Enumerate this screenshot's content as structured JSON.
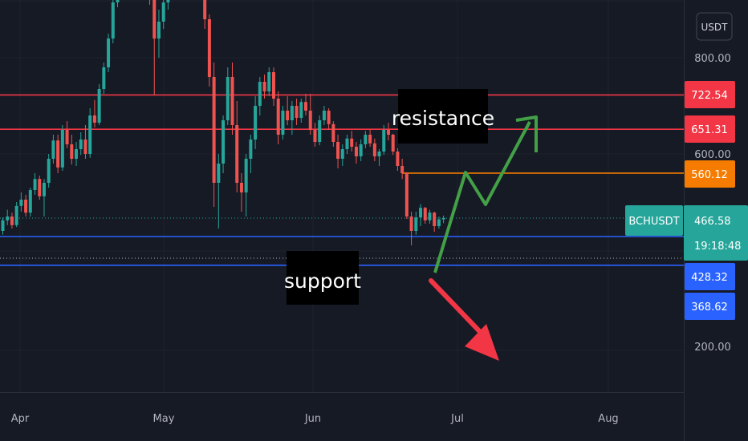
{
  "chart_data": {
    "type": "candlestick",
    "symbol": "BCHUSDT",
    "currency": "USDT",
    "countdown": "19:18:48",
    "y_ticks": [
      800.0,
      600.0,
      200.0
    ],
    "y_tick_labels": [
      "800.00",
      "600.00",
      "200.00"
    ],
    "x_ticks": [
      "Apr",
      "May",
      "Jun",
      "Jul",
      "Aug"
    ],
    "price_levels": [
      {
        "label": "722.54",
        "value": 722.54,
        "color": "#f23645",
        "role": "resistance"
      },
      {
        "label": "651.31",
        "value": 651.31,
        "color": "#f23645",
        "role": "resistance"
      },
      {
        "label": "560.12",
        "value": 560.12,
        "color": "#f57c00",
        "role": "level"
      },
      {
        "label": "428.32",
        "value": 428.32,
        "color": "#2962ff",
        "role": "support"
      },
      {
        "label": "368.62",
        "value": 368.62,
        "color": "#2962ff",
        "role": "support"
      }
    ],
    "last_price": {
      "label": "466.58",
      "value": 466.58,
      "color": "#26a69a"
    },
    "annotations": {
      "resistance": "resistance",
      "support": "support"
    },
    "candles": [
      [
        1,
        440,
        468,
        432,
        462
      ],
      [
        2,
        462,
        484,
        452,
        470
      ],
      [
        3,
        470,
        478,
        445,
        452
      ],
      [
        4,
        452,
        500,
        448,
        492
      ],
      [
        5,
        492,
        520,
        480,
        505
      ],
      [
        6,
        505,
        515,
        470,
        478
      ],
      [
        7,
        478,
        530,
        470,
        525
      ],
      [
        8,
        525,
        560,
        515,
        548
      ],
      [
        9,
        548,
        555,
        505,
        512
      ],
      [
        10,
        512,
        548,
        470,
        540
      ],
      [
        11,
        540,
        600,
        530,
        590
      ],
      [
        12,
        590,
        640,
        580,
        628
      ],
      [
        13,
        628,
        640,
        560,
        572
      ],
      [
        14,
        572,
        660,
        565,
        650
      ],
      [
        15,
        650,
        668,
        612,
        620
      ],
      [
        16,
        620,
        640,
        578,
        590
      ],
      [
        17,
        590,
        625,
        575,
        610
      ],
      [
        18,
        610,
        645,
        598,
        630
      ],
      [
        19,
        630,
        660,
        590,
        600
      ],
      [
        20,
        600,
        695,
        592,
        680
      ],
      [
        21,
        680,
        712,
        655,
        665
      ],
      [
        22,
        665,
        745,
        660,
        735
      ],
      [
        23,
        735,
        790,
        725,
        780
      ],
      [
        24,
        780,
        850,
        770,
        840
      ],
      [
        25,
        840,
        930,
        830,
        915
      ],
      [
        26,
        915,
        1000,
        905,
        990
      ],
      [
        27,
        990,
        1050,
        980,
        1035
      ],
      [
        28,
        1035,
        1070,
        990,
        1005
      ],
      [
        29,
        1005,
        1060,
        995,
        1045
      ],
      [
        30,
        1045,
        1080,
        1020,
        1030
      ],
      [
        31,
        1030,
        1090,
        1020,
        1075
      ],
      [
        32,
        1075,
        1090,
        1000,
        1010
      ],
      [
        33,
        1010,
        1040,
        910,
        925
      ],
      [
        34,
        925,
        935,
        722,
        840
      ],
      [
        35,
        840,
        900,
        800,
        875
      ],
      [
        36,
        875,
        930,
        860,
        915
      ],
      [
        37,
        915,
        980,
        900,
        970
      ],
      [
        38,
        970,
        1010,
        950,
        990
      ],
      [
        39,
        990,
        1040,
        975,
        1020
      ],
      [
        40,
        1020,
        1060,
        1005,
        1045
      ],
      [
        41,
        1045,
        1090,
        1030,
        1070
      ],
      [
        42,
        1070,
        1090,
        1040,
        1060
      ],
      [
        43,
        1060,
        1090,
        1045,
        1080
      ],
      [
        44,
        1100,
        1110,
        1000,
        1040
      ],
      [
        45,
        1040,
        1060,
        860,
        880
      ],
      [
        46,
        880,
        890,
        740,
        760
      ],
      [
        47,
        760,
        790,
        490,
        540
      ],
      [
        48,
        540,
        600,
        445,
        580
      ],
      [
        49,
        580,
        680,
        560,
        670
      ],
      [
        50,
        670,
        780,
        660,
        760
      ],
      [
        51,
        760,
        790,
        640,
        660
      ],
      [
        52,
        660,
        710,
        520,
        540
      ],
      [
        53,
        540,
        560,
        480,
        520
      ],
      [
        54,
        520,
        600,
        470,
        590
      ],
      [
        55,
        590,
        640,
        560,
        630
      ],
      [
        56,
        630,
        720,
        610,
        700
      ],
      [
        57,
        700,
        760,
        680,
        750
      ],
      [
        58,
        750,
        765,
        715,
        730
      ],
      [
        59,
        730,
        780,
        720,
        770
      ],
      [
        60,
        770,
        780,
        700,
        715
      ],
      [
        61,
        715,
        730,
        620,
        640
      ],
      [
        62,
        640,
        700,
        630,
        690
      ],
      [
        63,
        690,
        720,
        660,
        670
      ],
      [
        64,
        670,
        710,
        640,
        700
      ],
      [
        65,
        700,
        715,
        660,
        675
      ],
      [
        66,
        675,
        715,
        665,
        708
      ],
      [
        67,
        708,
        725,
        680,
        690
      ],
      [
        68,
        690,
        725,
        640,
        650
      ],
      [
        69,
        650,
        665,
        615,
        625
      ],
      [
        70,
        625,
        680,
        618,
        670
      ],
      [
        71,
        670,
        700,
        660,
        690
      ],
      [
        72,
        690,
        695,
        650,
        662
      ],
      [
        73,
        662,
        668,
        615,
        625
      ],
      [
        74,
        625,
        640,
        570,
        590
      ],
      [
        75,
        590,
        620,
        575,
        610
      ],
      [
        76,
        610,
        640,
        600,
        632
      ],
      [
        77,
        632,
        648,
        605,
        615
      ],
      [
        78,
        615,
        625,
        580,
        595
      ],
      [
        79,
        595,
        630,
        585,
        620
      ],
      [
        80,
        620,
        648,
        612,
        640
      ],
      [
        81,
        640,
        650,
        615,
        622
      ],
      [
        82,
        622,
        632,
        585,
        595
      ],
      [
        83,
        595,
        610,
        575,
        605
      ],
      [
        84,
        605,
        660,
        598,
        650
      ],
      [
        85,
        650,
        665,
        628,
        640
      ],
      [
        86,
        640,
        642,
        598,
        605
      ],
      [
        87,
        605,
        612,
        565,
        575
      ],
      [
        88,
        575,
        590,
        548,
        560
      ],
      [
        89,
        560,
        562,
        465,
        470
      ],
      [
        90,
        470,
        480,
        410,
        440
      ],
      [
        91,
        440,
        480,
        432,
        468
      ],
      [
        92,
        468,
        496,
        450,
        488
      ],
      [
        93,
        488,
        490,
        455,
        462
      ],
      [
        94,
        462,
        484,
        455,
        478
      ],
      [
        95,
        478,
        480,
        438,
        450
      ],
      [
        96,
        450,
        470,
        445,
        464
      ],
      [
        97,
        464,
        472,
        456,
        467
      ]
    ]
  }
}
